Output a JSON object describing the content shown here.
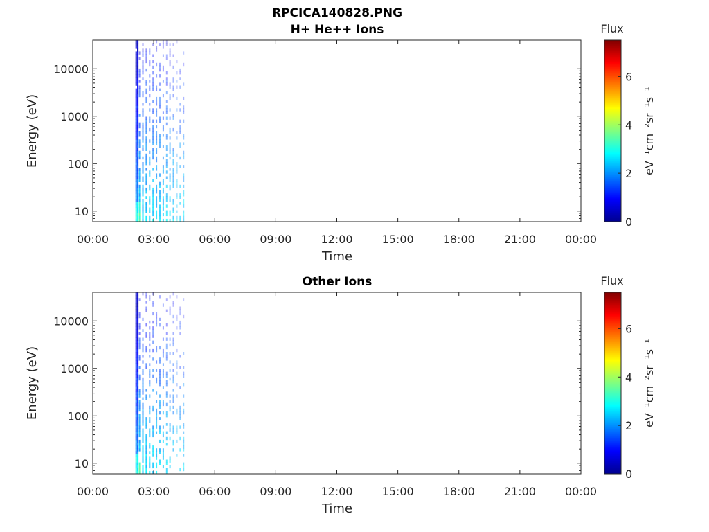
{
  "figure": {
    "title_line1": "RPCICA140828.PNG"
  },
  "chart_data": [
    {
      "type": "heatmap",
      "title": "H+ He++ Ions",
      "xlabel": "Time",
      "ylabel": "Energy (eV)",
      "x_ticks": [
        "00:00",
        "03:00",
        "06:00",
        "09:00",
        "12:00",
        "15:00",
        "18:00",
        "21:00",
        "00:00"
      ],
      "xlim_hours": [
        0,
        24
      ],
      "y_scale": "log",
      "y_ticks": [
        10,
        100,
        1000,
        10000
      ],
      "y_tick_labels": [
        "10",
        "100",
        "1000",
        "10000"
      ],
      "ylim": [
        6,
        40000
      ],
      "data_time_range_hours": [
        2.1,
        4.6
      ],
      "colorbar": {
        "title": "Flux",
        "label": "eV⁻¹cm⁻²sr⁻¹s⁻¹",
        "ticks": [
          0,
          2,
          4,
          6
        ],
        "range": [
          0,
          7.5
        ]
      }
    },
    {
      "type": "heatmap",
      "title": "Other Ions",
      "xlabel": "Time",
      "ylabel": "Energy (eV)",
      "x_ticks": [
        "00:00",
        "03:00",
        "06:00",
        "09:00",
        "12:00",
        "15:00",
        "18:00",
        "21:00",
        "00:00"
      ],
      "xlim_hours": [
        0,
        24
      ],
      "y_scale": "log",
      "y_ticks": [
        10,
        100,
        1000,
        10000
      ],
      "y_tick_labels": [
        "10",
        "100",
        "1000",
        "10000"
      ],
      "ylim": [
        6,
        40000
      ],
      "data_time_range_hours": [
        2.1,
        4.6
      ],
      "colorbar": {
        "title": "Flux",
        "label": "eV⁻¹cm⁻²sr⁻¹s⁻¹",
        "ticks": [
          0,
          2,
          4,
          6
        ],
        "range": [
          0,
          7.5
        ]
      }
    }
  ]
}
